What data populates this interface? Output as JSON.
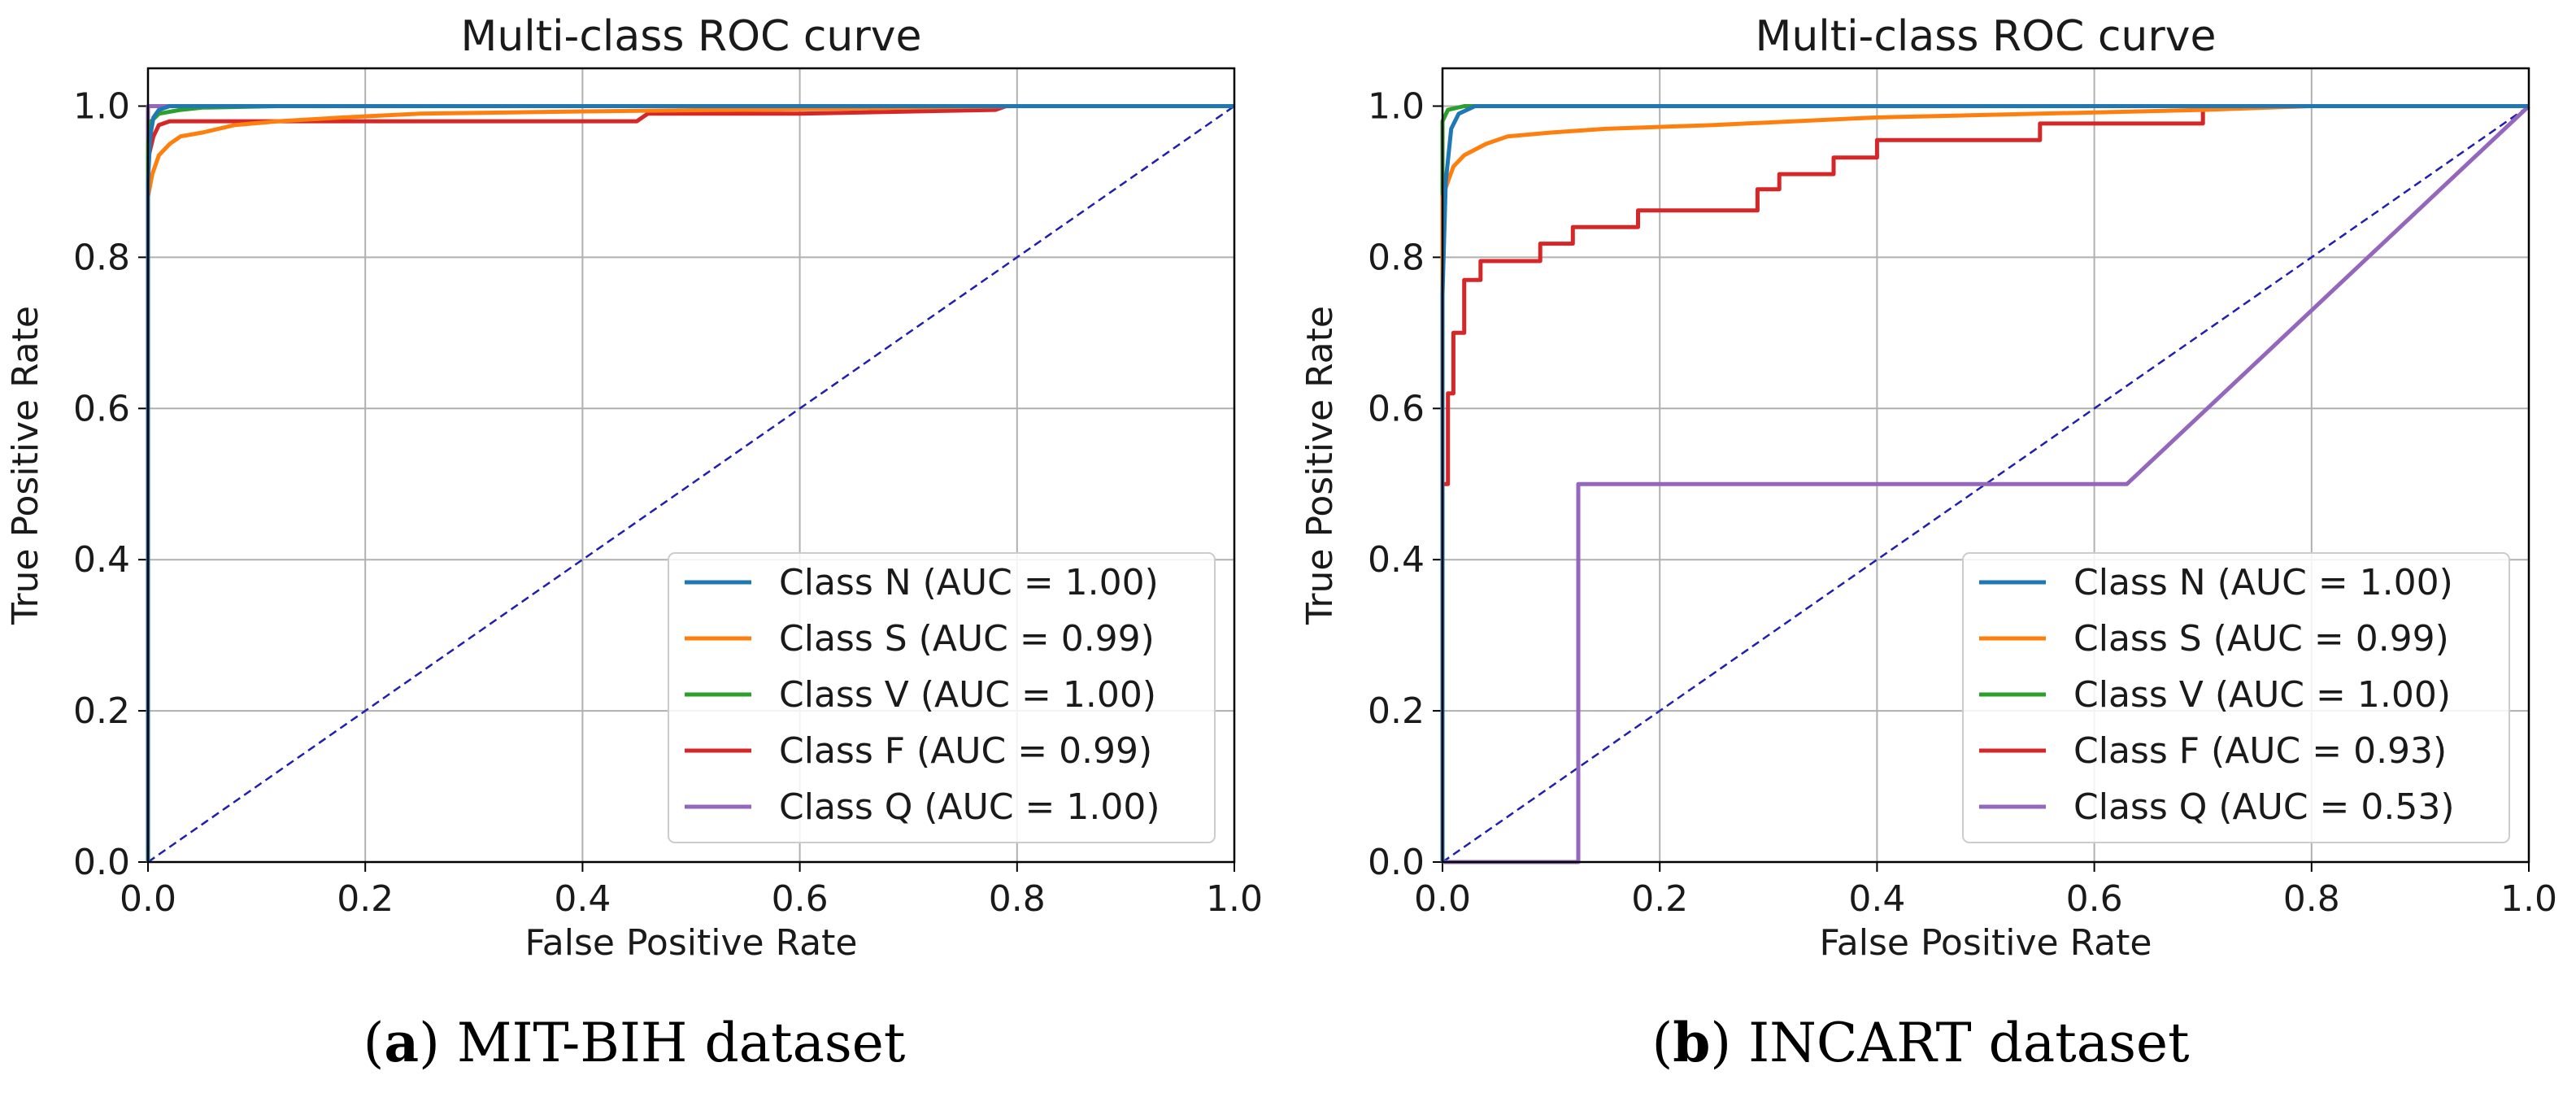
{
  "figure": {
    "captions": [
      {
        "label": "a",
        "text": " MIT-BIH dataset"
      },
      {
        "label": "b",
        "text": " INCART dataset"
      }
    ]
  },
  "chart_data": [
    {
      "type": "line",
      "title": "Multi-class ROC curve",
      "xlabel": "False Positive Rate",
      "ylabel": "True Positive Rate",
      "xlim": [
        0.0,
        1.0
      ],
      "ylim": [
        0.0,
        1.05
      ],
      "xticks": [
        "0.0",
        "0.2",
        "0.4",
        "0.6",
        "0.8",
        "1.0"
      ],
      "yticks": [
        "0.0",
        "0.2",
        "0.4",
        "0.6",
        "0.8",
        "1.0"
      ],
      "grid": true,
      "legend_position": "lower-right",
      "diagonal": {
        "x": [
          0,
          1
        ],
        "y": [
          0,
          1
        ],
        "color": "#2020b0",
        "style": "dashed"
      },
      "series": [
        {
          "name": "Class N (AUC = 1.00)",
          "color": "#1f77b4",
          "x": [
            0,
            0,
            0.002,
            0.005,
            0.01,
            0.02,
            1.0
          ],
          "y": [
            0,
            0.9,
            0.96,
            0.985,
            0.995,
            1.0,
            1.0
          ]
        },
        {
          "name": "Class S (AUC = 0.99)",
          "color": "#ff7f0e",
          "x": [
            0,
            0,
            0.004,
            0.01,
            0.02,
            0.03,
            0.05,
            0.08,
            0.12,
            0.18,
            0.25,
            0.4,
            0.6,
            0.8,
            1.0
          ],
          "y": [
            0,
            0.88,
            0.91,
            0.935,
            0.95,
            0.96,
            0.965,
            0.975,
            0.98,
            0.985,
            0.99,
            0.993,
            0.996,
            1.0,
            1.0
          ]
        },
        {
          "name": "Class V (AUC = 1.00)",
          "color": "#2ca02c",
          "x": [
            0,
            0,
            0.003,
            0.01,
            0.03,
            0.05,
            0.12,
            1.0
          ],
          "y": [
            0,
            0.95,
            0.98,
            0.99,
            0.995,
            0.998,
            1.0,
            1.0
          ]
        },
        {
          "name": "Class F (AUC = 0.99)",
          "color": "#d62728",
          "x": [
            0,
            0,
            0.005,
            0.01,
            0.02,
            0.2,
            0.45,
            0.46,
            0.6,
            0.78,
            0.79,
            1.0
          ],
          "y": [
            0,
            0.93,
            0.96,
            0.975,
            0.98,
            0.98,
            0.98,
            0.99,
            0.99,
            0.995,
            1.0,
            1.0
          ]
        },
        {
          "name": "Class Q (AUC = 1.00)",
          "color": "#9467bd",
          "x": [
            0,
            0,
            0.03,
            1.0
          ],
          "y": [
            0,
            1.0,
            1.0,
            1.0
          ]
        }
      ]
    },
    {
      "type": "line",
      "title": "Multi-class ROC curve",
      "xlabel": "False Positive Rate",
      "ylabel": "True Positive Rate",
      "xlim": [
        0.0,
        1.0
      ],
      "ylim": [
        0.0,
        1.05
      ],
      "xticks": [
        "0.0",
        "0.2",
        "0.4",
        "0.6",
        "0.8",
        "1.0"
      ],
      "yticks": [
        "0.0",
        "0.2",
        "0.4",
        "0.6",
        "0.8",
        "1.0"
      ],
      "grid": true,
      "legend_position": "lower-right",
      "diagonal": {
        "x": [
          0,
          1
        ],
        "y": [
          0,
          1
        ],
        "color": "#2020b0",
        "style": "dashed"
      },
      "series": [
        {
          "name": "Class N (AUC = 1.00)",
          "color": "#1f77b4",
          "x": [
            0,
            0,
            0.003,
            0.008,
            0.015,
            0.03,
            1.0
          ],
          "y": [
            0,
            0.75,
            0.9,
            0.97,
            0.99,
            1.0,
            1.0
          ]
        },
        {
          "name": "Class S (AUC = 0.99)",
          "color": "#ff7f0e",
          "x": [
            0,
            0,
            0.005,
            0.01,
            0.02,
            0.04,
            0.06,
            0.1,
            0.15,
            0.25,
            0.4,
            0.55,
            0.7,
            0.8,
            1.0
          ],
          "y": [
            0,
            0.88,
            0.9,
            0.92,
            0.935,
            0.95,
            0.96,
            0.965,
            0.97,
            0.975,
            0.985,
            0.99,
            0.995,
            1.0,
            1.0
          ]
        },
        {
          "name": "Class V (AUC = 1.00)",
          "color": "#2ca02c",
          "x": [
            0,
            0,
            0.005,
            0.02,
            0.7,
            1.0
          ],
          "y": [
            0,
            0.98,
            0.995,
            1.0,
            1.0,
            1.0
          ]
        },
        {
          "name": "Class F (AUC = 0.93)",
          "color": "#d62728",
          "x": [
            0,
            0,
            0.005,
            0.005,
            0.01,
            0.01,
            0.02,
            0.02,
            0.035,
            0.035,
            0.09,
            0.09,
            0.12,
            0.12,
            0.18,
            0.18,
            0.29,
            0.29,
            0.31,
            0.31,
            0.36,
            0.36,
            0.4,
            0.4,
            0.55,
            0.55,
            0.7,
            0.7,
            1.0
          ],
          "y": [
            0,
            0.5,
            0.5,
            0.62,
            0.62,
            0.7,
            0.7,
            0.77,
            0.77,
            0.795,
            0.795,
            0.818,
            0.818,
            0.84,
            0.84,
            0.862,
            0.862,
            0.89,
            0.89,
            0.91,
            0.91,
            0.932,
            0.932,
            0.955,
            0.955,
            0.977,
            0.977,
            1.0,
            1.0
          ]
        },
        {
          "name": "Class Q (AUC = 0.53)",
          "color": "#9467bd",
          "x": [
            0,
            0.125,
            0.125,
            0.63,
            1.0
          ],
          "y": [
            0,
            0,
            0.5,
            0.5,
            1.0
          ]
        }
      ]
    }
  ]
}
